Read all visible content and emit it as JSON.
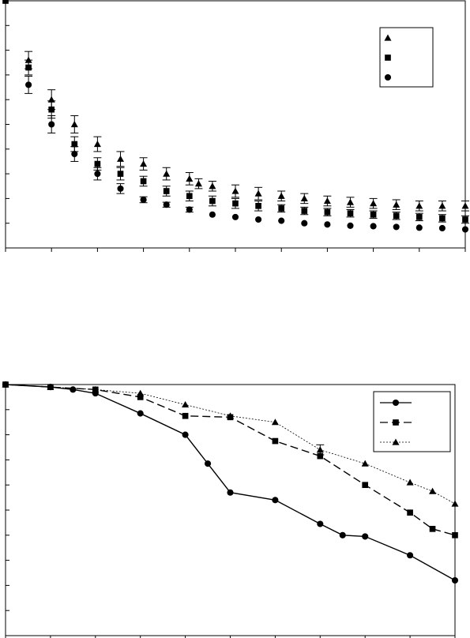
{
  "chart_data": [
    {
      "type": "scatter",
      "title": "",
      "xlabel": "",
      "ylabel": "",
      "xlim": [
        0,
        20
      ],
      "ylim": [
        0,
        10
      ],
      "x_ticks": 10,
      "y_ticks": 10,
      "grid": false,
      "legend": "top-right",
      "series": [
        {
          "marker": "triangle",
          "x": [
            1,
            2,
            3,
            4,
            5,
            6,
            7,
            8,
            8.4,
            9,
            10,
            11,
            12,
            13,
            14,
            15,
            16,
            17,
            18,
            19,
            20
          ],
          "y": [
            7.6,
            6.0,
            5.0,
            4.2,
            3.6,
            3.4,
            3.0,
            2.8,
            2.6,
            2.5,
            2.3,
            2.2,
            2.1,
            2.0,
            1.9,
            1.85,
            1.8,
            1.75,
            1.7,
            1.7,
            1.7
          ],
          "err": [
            0.35,
            0.4,
            0.35,
            0.3,
            0.3,
            0.25,
            0.25,
            0.25,
            0.2,
            0.2,
            0.25,
            0.25,
            0.2,
            0.2,
            0.2,
            0.2,
            0.2,
            0.2,
            0.2,
            0.2,
            0.2
          ]
        },
        {
          "marker": "square",
          "x": [
            0,
            1,
            2,
            3,
            4,
            5,
            6,
            7,
            8,
            9,
            10,
            11,
            12,
            13,
            14,
            15,
            16,
            17,
            18,
            19,
            20
          ],
          "y": [
            10.0,
            7.3,
            5.6,
            4.2,
            3.4,
            3.0,
            2.7,
            2.3,
            2.1,
            1.9,
            1.8,
            1.7,
            1.6,
            1.5,
            1.45,
            1.4,
            1.35,
            1.3,
            1.25,
            1.2,
            1.15
          ],
          "err": [
            0,
            0.3,
            0.35,
            0.3,
            0.25,
            0.25,
            0.2,
            0.2,
            0.2,
            0.2,
            0.2,
            0.2,
            0.15,
            0.15,
            0.15,
            0.15,
            0.15,
            0.15,
            0.15,
            0.15,
            0.15
          ]
        },
        {
          "marker": "circle",
          "x": [
            1,
            2,
            3,
            4,
            5,
            6,
            7,
            8,
            9,
            10,
            11,
            12,
            13,
            14,
            15,
            16,
            17,
            18,
            19,
            20
          ],
          "y": [
            6.6,
            5.0,
            3.8,
            3.0,
            2.4,
            1.95,
            1.75,
            1.55,
            1.35,
            1.25,
            1.15,
            1.1,
            1.0,
            0.95,
            0.9,
            0.88,
            0.85,
            0.82,
            0.8,
            0.75
          ],
          "err": [
            0.35,
            0.35,
            0.3,
            0.25,
            0.2,
            0.12,
            0.1,
            0.1,
            0,
            0,
            0,
            0,
            0,
            0,
            0,
            0,
            0,
            0,
            0,
            0
          ]
        }
      ]
    },
    {
      "type": "line",
      "title": "",
      "xlabel": "",
      "ylabel": "",
      "xlim": [
        0,
        10
      ],
      "ylim": [
        0,
        10
      ],
      "x_ticks": 10,
      "y_ticks": 10,
      "grid": false,
      "legend": "top-right",
      "series": [
        {
          "marker": "circle",
          "line": "solid",
          "x": [
            0,
            1,
            1.5,
            2,
            3,
            4,
            4.5,
            5,
            6,
            7,
            7.5,
            8,
            9,
            10
          ],
          "y": [
            10.0,
            9.9,
            9.8,
            9.65,
            8.85,
            8.0,
            6.85,
            5.7,
            5.4,
            4.45,
            4.0,
            3.95,
            3.2,
            2.2
          ],
          "err": [
            0,
            0,
            0,
            0,
            0,
            0,
            0,
            0,
            0,
            0,
            0,
            0,
            0,
            0
          ]
        },
        {
          "marker": "square",
          "line": "dashed",
          "x": [
            0,
            1,
            2,
            3,
            4,
            5,
            6,
            7,
            8,
            9,
            9.5,
            10
          ],
          "y": [
            10.0,
            9.9,
            9.8,
            9.5,
            8.75,
            8.7,
            7.75,
            7.15,
            6.0,
            4.9,
            4.25,
            4.0
          ],
          "err": [
            0,
            0,
            0,
            0,
            0,
            0,
            0,
            0,
            0,
            0,
            0,
            0
          ]
        },
        {
          "marker": "triangle",
          "line": "dotted",
          "x": [
            0,
            1,
            2,
            3,
            4,
            5,
            6,
            7,
            8,
            9,
            9.5,
            10
          ],
          "y": [
            10.0,
            9.9,
            9.8,
            9.65,
            9.2,
            8.75,
            8.5,
            7.4,
            6.85,
            6.1,
            5.75,
            5.25
          ],
          "err": [
            0,
            0,
            0,
            0,
            0,
            0,
            0,
            0.2,
            0,
            0,
            0,
            0
          ]
        }
      ]
    }
  ]
}
